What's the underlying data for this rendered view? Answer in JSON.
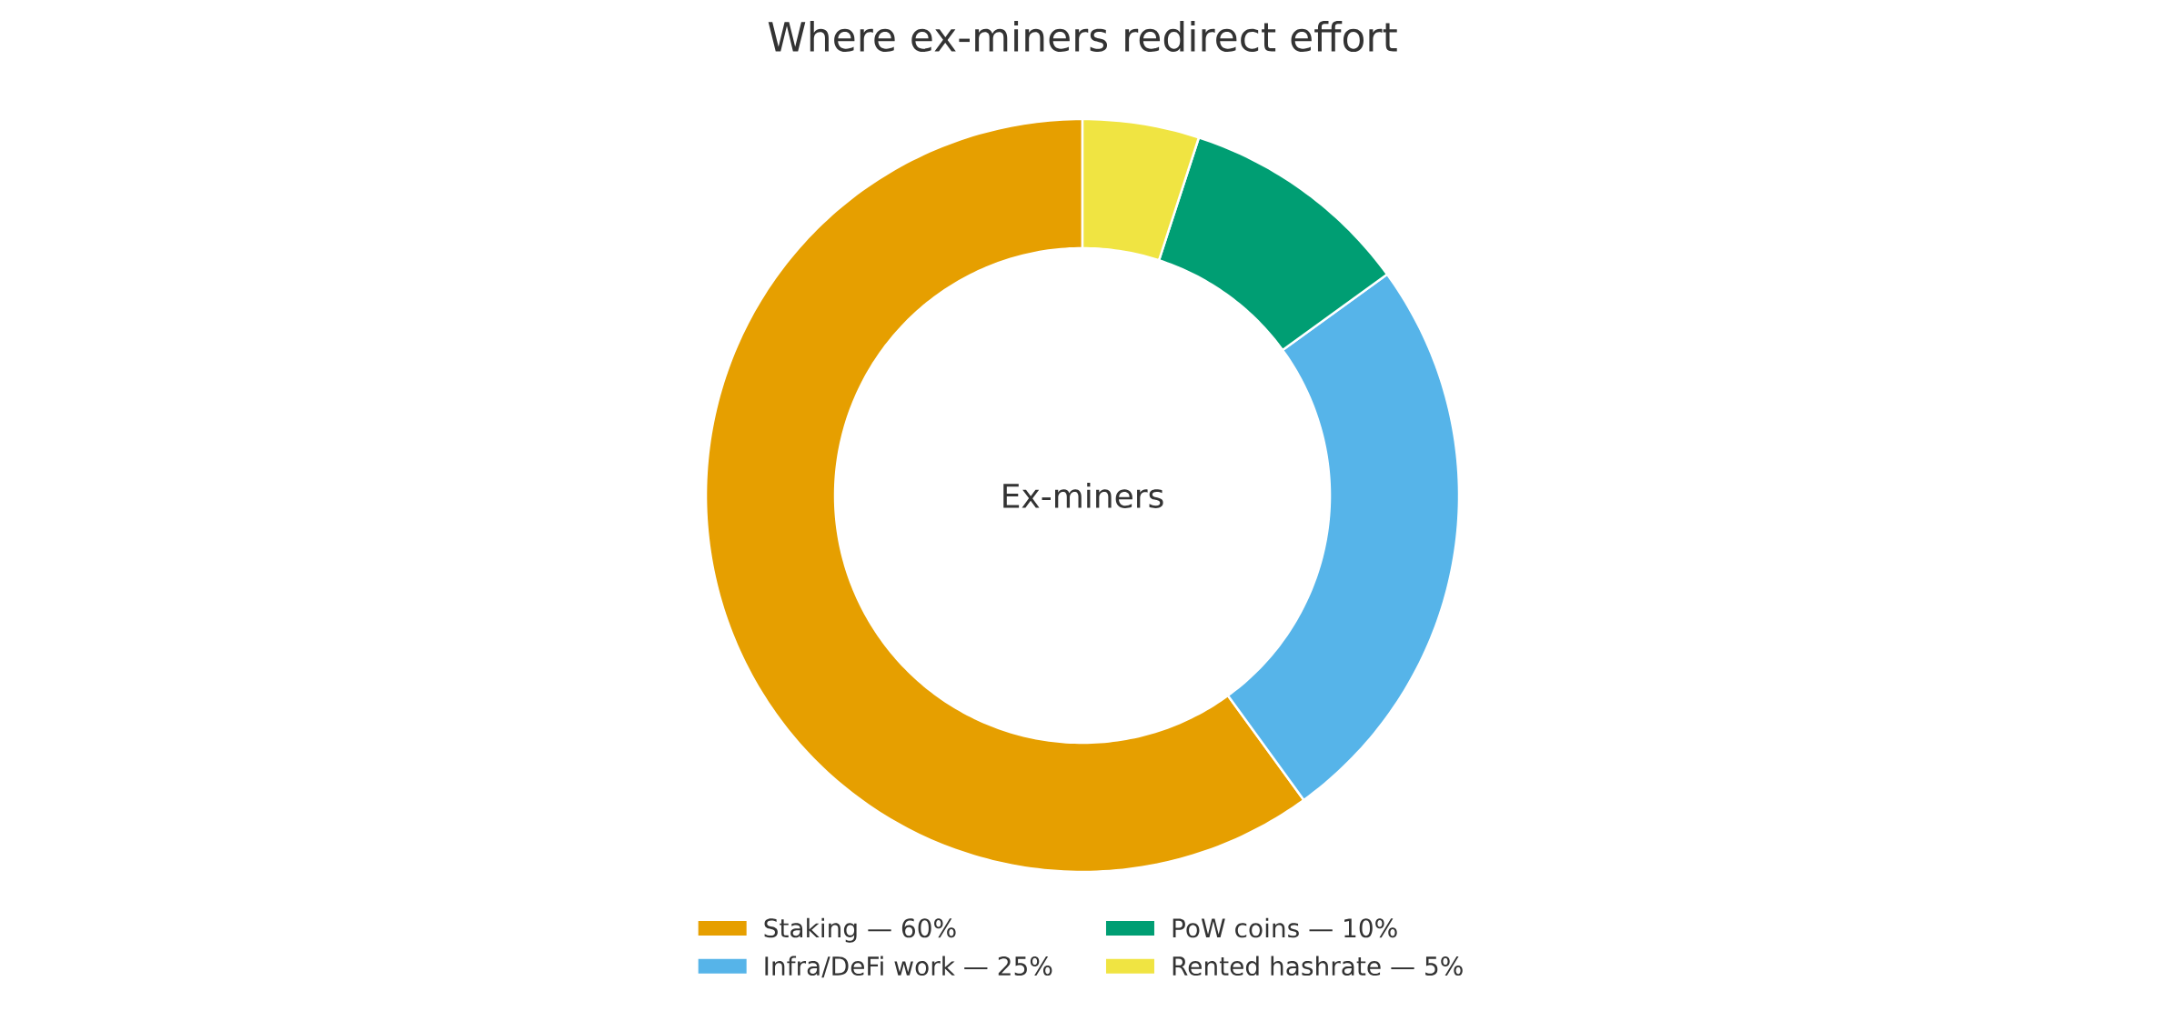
{
  "chart_data": {
    "type": "donut",
    "title": "Where ex-miners redirect effort",
    "categories": [
      "Staking — 60%",
      "Infra/DeFi work — 25%",
      "PoW coins — 10%",
      "Rented hashrate — 5%"
    ],
    "values": [
      60,
      25,
      10,
      5
    ],
    "colors": [
      "#e69f00",
      "#56b4e9",
      "#009e73",
      "#f0e442"
    ],
    "annotations": [
      "Ex-miners"
    ],
    "legend": "bottom"
  }
}
